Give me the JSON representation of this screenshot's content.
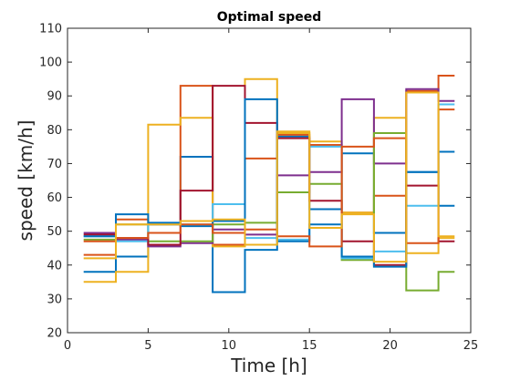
{
  "chart_data": {
    "type": "line",
    "title": "Optimal speed",
    "xlabel": "Time [h]",
    "ylabel": "speed [km/h]",
    "xlim": [
      0,
      25
    ],
    "ylim": [
      20,
      110
    ],
    "xticks": [
      0,
      5,
      10,
      15,
      20,
      25
    ],
    "yticks": [
      20,
      30,
      40,
      50,
      60,
      70,
      80,
      90,
      100,
      110
    ],
    "grid": false,
    "step": "post",
    "x": [
      1,
      3,
      5,
      7,
      9,
      11,
      13,
      15,
      17,
      19,
      21,
      23,
      24
    ],
    "series": [
      {
        "color": "#0072BD",
        "values": [
          38,
          42.5,
          52,
          72,
          32,
          44.5,
          78,
          56.5,
          73,
          49.5,
          67.5,
          73.5,
          73.5
        ]
      },
      {
        "color": "#D95319",
        "values": [
          43,
          53.5,
          52,
          93,
          46,
          71.5,
          78.5,
          75.5,
          55.5,
          60.5,
          91.5,
          96,
          96
        ]
      },
      {
        "color": "#EDB120",
        "values": [
          35,
          38,
          81.5,
          83.5,
          45.5,
          95,
          79,
          76.5,
          55.5,
          83.5,
          43.5,
          48,
          48
        ]
      },
      {
        "color": "#7E2F8E",
        "values": [
          49.5,
          47.5,
          45.5,
          46.5,
          50.5,
          49,
          66.5,
          67.5,
          89,
          70,
          92,
          88.5,
          88.5
        ]
      },
      {
        "color": "#77AC30",
        "values": [
          47.5,
          52,
          47,
          47,
          52,
          52.5,
          61.5,
          64,
          41.5,
          79,
          32.5,
          38,
          38
        ]
      },
      {
        "color": "#4DBEEE",
        "values": [
          48.5,
          47,
          52,
          52,
          58,
          48,
          47.5,
          75,
          42,
          44,
          57.5,
          87.5,
          87.5
        ]
      },
      {
        "color": "#A2142F",
        "values": [
          49,
          48,
          46,
          62,
          93,
          82,
          77.5,
          59,
          47,
          40,
          63.5,
          47,
          47
        ]
      },
      {
        "color": "#0072BD",
        "values": [
          48.5,
          55,
          52.5,
          51.5,
          53,
          89,
          47,
          52,
          42.5,
          39.5,
          67.5,
          57.5,
          57.5
        ]
      },
      {
        "color": "#D95319",
        "values": [
          47,
          48,
          49.5,
          52,
          49.5,
          50.5,
          48.5,
          45.5,
          75,
          77.5,
          46.5,
          86,
          86
        ]
      },
      {
        "color": "#EDB120",
        "values": [
          42,
          52,
          52,
          53,
          53.5,
          46,
          79.5,
          51,
          55,
          41,
          91,
          48.5,
          48.5
        ]
      }
    ]
  }
}
